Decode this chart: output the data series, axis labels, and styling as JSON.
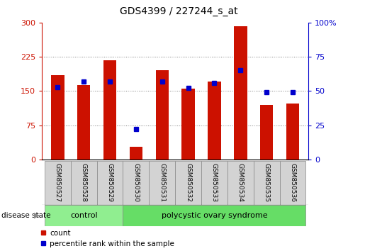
{
  "title": "GDS4399 / 227244_s_at",
  "samples": [
    "GSM850527",
    "GSM850528",
    "GSM850529",
    "GSM850530",
    "GSM850531",
    "GSM850532",
    "GSM850533",
    "GSM850534",
    "GSM850535",
    "GSM850536"
  ],
  "counts": [
    185,
    163,
    218,
    28,
    195,
    155,
    170,
    292,
    120,
    122
  ],
  "percentiles": [
    53,
    57,
    57,
    22,
    57,
    52,
    56,
    65,
    49,
    49
  ],
  "groups": [
    {
      "label": "control",
      "n": 3
    },
    {
      "label": "polycystic ovary syndrome",
      "n": 7
    }
  ],
  "bar_color": "#cc1100",
  "dot_color": "#0000cc",
  "left_ylim": [
    0,
    300
  ],
  "right_ylim": [
    0,
    100
  ],
  "left_yticks": [
    0,
    75,
    150,
    225,
    300
  ],
  "right_yticks": [
    0,
    25,
    50,
    75,
    100
  ],
  "left_ytick_labels": [
    "0",
    "75",
    "150",
    "225",
    "300"
  ],
  "right_ytick_labels": [
    "0",
    "25",
    "50",
    "75",
    "100%"
  ],
  "grid_values": [
    75,
    150,
    225
  ],
  "bar_width": 0.5,
  "group_label": "disease state",
  "legend_count_label": "count",
  "legend_percentile_label": "percentile rank within the sample",
  "sample_bg_color": "#d3d3d3",
  "group_bg_color_1": "#90ee90",
  "group_bg_color_2": "#66dd66",
  "control_n": 3,
  "poly_n": 7
}
